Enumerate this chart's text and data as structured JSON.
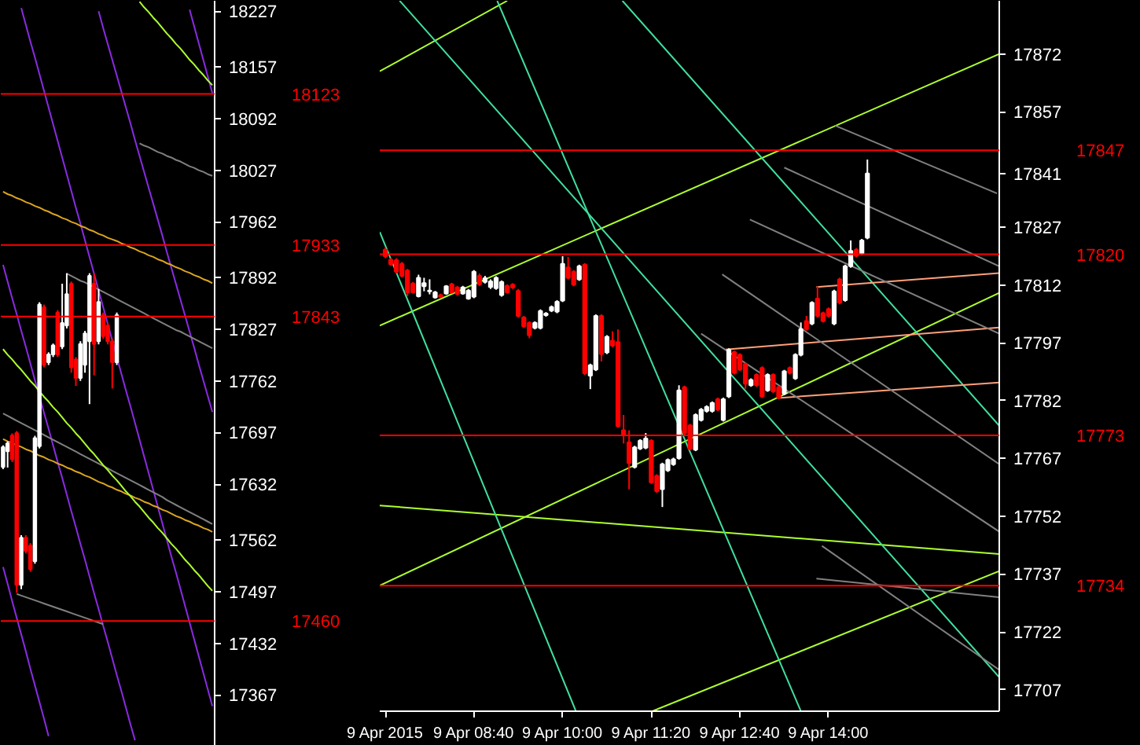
{
  "chart_data": [
    {
      "type": "candlestick",
      "tick_labels": "y",
      "grid": false,
      "categories": [
        null,
        null,
        null,
        null,
        null,
        null,
        null,
        null,
        null,
        null,
        null,
        null,
        null,
        null,
        null,
        null,
        null,
        null,
        null,
        null,
        null,
        null,
        null,
        null,
        null,
        null,
        null,
        null,
        null,
        null,
        null,
        null,
        null,
        null,
        null,
        null,
        null,
        null,
        null,
        null,
        null,
        null,
        null,
        null,
        null,
        null,
        null
      ],
      "ohlc": [
        [
          17653.7,
          17681,
          17651,
          17678.7
        ],
        [
          17673.4,
          17686,
          17653,
          17683.3
        ],
        [
          17693.2,
          17696,
          17660,
          17663.5
        ],
        [
          17696.5,
          17699,
          17495.5,
          17505.4
        ],
        [
          17505.4,
          17568,
          17500,
          17564.7
        ],
        [
          17564.7,
          17568,
          17545,
          17548.2
        ],
        [
          17554.8,
          17558,
          17522,
          17525.2
        ],
        [
          17535,
          17693,
          17532,
          17690
        ],
        [
          17680,
          17861,
          17677,
          17858
        ],
        [
          17854.7,
          17858,
          17779,
          17782.2
        ],
        [
          17785.5,
          17798,
          17782,
          17795.4
        ],
        [
          17795.4,
          17809,
          17792,
          17806.6
        ],
        [
          17848,
          17851,
          17792,
          17795.4
        ],
        [
          17805.2,
          17884.3,
          17802,
          17834.9
        ],
        [
          17831.6,
          17897.5,
          17828,
          17871.2
        ],
        [
          17884.3,
          17887,
          17772.3,
          17778.9
        ],
        [
          17788.8,
          17792,
          17755.8,
          17765.7
        ],
        [
          17765.7,
          17812,
          17762,
          17808.5
        ],
        [
          17782.2,
          17825,
          17772.3,
          17821.7
        ],
        [
          17811.8,
          17897.5,
          17732.8,
          17894.2
        ],
        [
          17884.3,
          17897.5,
          17769,
          17808.5
        ],
        [
          17811.8,
          17877.7,
          17808,
          17861.3
        ],
        [
          17844.8,
          17848,
          17815,
          17818.4
        ],
        [
          17831.6,
          17835,
          17808,
          17811.8
        ],
        [
          17811.8,
          17815,
          17752.5,
          17785.5
        ],
        [
          17785.5,
          17848,
          17782,
          17844.8
        ],
        null,
        null,
        null,
        null,
        null,
        null,
        null,
        null,
        null,
        null,
        null,
        null,
        null,
        null,
        null,
        null,
        null,
        null,
        null,
        null,
        null
      ],
      "colors": [
        "#ffffff",
        "#ffffff",
        "#ff0000",
        "#ff0000",
        "#ffffff",
        "#ff0000",
        "#ff0000",
        "#ffffff",
        "#ffffff",
        "#ff0000",
        "#ffffff",
        "#ffffff",
        "#ff0000",
        "#ffffff",
        "#ffffff",
        "#ff0000",
        "#ff0000",
        "#ffffff",
        "#ffffff",
        "#ffffff",
        "#ff0000",
        "#ffffff",
        "#ff0000",
        "#ff0000",
        "#ff0000",
        "#ffffff",
        null,
        null,
        null,
        null,
        null,
        null,
        null,
        null,
        null,
        null,
        null,
        null,
        null,
        null,
        null,
        null,
        null,
        null,
        null,
        null,
        null
      ],
      "series": [
        {
          "type": "line",
          "color": "#8a2be2",
          "values": [
            17908,
            17887,
            17866,
            17846,
            17825,
            17805,
            17784,
            17763,
            17743,
            17722,
            17702,
            17681,
            17660,
            17640,
            17619,
            17598,
            17578,
            17557,
            17537,
            17516,
            17495,
            17475,
            17454,
            17434,
            17413,
            17392,
            17372,
            17351,
            17330,
            17310,
            null,
            null,
            null,
            null,
            null,
            null,
            null,
            null,
            null,
            null,
            null,
            null,
            null,
            null,
            null,
            null,
            null
          ]
        },
        {
          "type": "line",
          "color": "#8a2be2",
          "values": [
            null,
            null,
            null,
            null,
            18231,
            18210,
            18189,
            18169,
            18148,
            18127,
            18106,
            18085,
            18064,
            18043,
            18022,
            18001,
            17980,
            17960,
            17939,
            17918,
            17897,
            17876,
            17855,
            17834,
            17813,
            17792,
            17771,
            17750,
            17730,
            17709,
            17688,
            17667,
            17646,
            17625,
            17604,
            17583,
            17562,
            17541,
            17521,
            17500,
            17479,
            17458,
            17437,
            17416,
            17395,
            17374,
            17353
          ]
        },
        {
          "type": "line",
          "color": "#8a2be2",
          "values": [
            null,
            null,
            null,
            null,
            null,
            null,
            null,
            null,
            null,
            null,
            null,
            null,
            null,
            null,
            null,
            null,
            null,
            null,
            null,
            null,
            null,
            18227,
            18206,
            18186,
            18166,
            18146,
            18126,
            18106,
            18086,
            18065,
            18045,
            18025,
            18005,
            17985,
            17965,
            17945,
            17924,
            17904,
            17884,
            17864,
            17844,
            17824,
            17804,
            17783,
            17763,
            17743,
            17723
          ]
        },
        {
          "type": "line",
          "color": "#8a2be2",
          "values": [
            null,
            null,
            null,
            null,
            null,
            null,
            null,
            null,
            null,
            null,
            null,
            null,
            null,
            null,
            null,
            null,
            null,
            null,
            null,
            null,
            null,
            null,
            null,
            null,
            null,
            null,
            null,
            null,
            null,
            null,
            null,
            null,
            null,
            null,
            null,
            null,
            null,
            null,
            null,
            null,
            null,
            18229,
            18208,
            18187,
            18166,
            18145,
            18124
          ]
        },
        {
          "type": "line",
          "color": "#8a2be2",
          "values": [
            17528,
            17507,
            17485,
            17464,
            17443,
            17422,
            17400,
            17379,
            17358,
            17337,
            17315,
            null,
            null,
            null,
            null,
            null,
            null,
            null,
            null,
            null,
            null,
            null,
            null,
            null,
            null,
            null,
            null,
            null,
            null,
            null,
            null,
            null,
            null,
            null,
            null,
            null,
            null,
            null,
            null,
            null,
            null,
            null,
            null,
            null,
            null,
            null,
            null
          ]
        },
        {
          "type": "line",
          "color": "#daa520",
          "values": [
            18000,
            17997,
            17995,
            17992,
            17990,
            17987,
            17985,
            17982,
            17980,
            17977,
            17975,
            17972,
            17970,
            17967,
            17965,
            17962,
            17960,
            17957,
            17955,
            17952,
            17950,
            17947,
            17945,
            17942,
            17940,
            17938,
            17935,
            17933,
            17930,
            17928,
            17925,
            17923,
            17920,
            17918,
            17915,
            17913,
            17910,
            17908,
            17905,
            17903,
            17900,
            17898,
            17895,
            17893,
            17890,
            17888,
            17885
          ]
        },
        {
          "type": "line",
          "color": "#daa520",
          "values": [
            17689,
            17686,
            17684,
            17681,
            17679,
            17676,
            17674,
            17671,
            17668,
            17666,
            17663,
            17661,
            17658,
            17656,
            17653,
            17651,
            17648,
            17646,
            17643,
            17641,
            17638,
            17635,
            17633,
            17630,
            17628,
            17625,
            17623,
            17620,
            17618,
            17615,
            17613,
            17610,
            17608,
            17605,
            17603,
            17600,
            17598,
            17595,
            17592,
            17590,
            17587,
            17585,
            17582,
            17580,
            17577,
            17575,
            17572
          ]
        },
        {
          "type": "line",
          "color": "#808080",
          "values": [
            null,
            null,
            null,
            null,
            null,
            null,
            null,
            null,
            null,
            null,
            null,
            null,
            null,
            null,
            17897,
            17894,
            17891,
            17888,
            17886,
            17883,
            17880,
            17877,
            17874,
            17871,
            17868,
            17865,
            17862,
            17859,
            17856,
            17853,
            17850,
            17847,
            17844,
            17841,
            17838,
            17835,
            17832,
            17829,
            17826,
            17824,
            17821,
            17818,
            17815,
            17812,
            17809,
            17806,
            17803
          ]
        },
        {
          "type": "line",
          "color": "#808080",
          "values": [
            17721,
            17718,
            17715,
            17712,
            17709,
            17706,
            17703,
            17700,
            17697,
            17694,
            17691,
            17688,
            17685,
            17682,
            17679,
            17676,
            17673,
            17670,
            17667,
            17664,
            17661,
            17658,
            17655,
            17652,
            17649,
            17646,
            17643,
            17640,
            17637,
            17634,
            17631,
            17628,
            17625,
            17622,
            17619,
            17616,
            17612,
            17609,
            17606,
            17603,
            17600,
            17597,
            17594,
            17591,
            17588,
            17585,
            17582
          ]
        },
        {
          "type": "line",
          "color": "#808080",
          "values": [
            null,
            null,
            null,
            17494,
            17492,
            17490,
            17488,
            17486,
            17484,
            17482,
            17480,
            17478,
            17476,
            17474,
            17472,
            17470,
            17468,
            17466,
            17464,
            17462,
            17460,
            17458,
            17456,
            null,
            null,
            null,
            null,
            null,
            null,
            null,
            null,
            null,
            null,
            null,
            null,
            null,
            null,
            null,
            null,
            null,
            null,
            null,
            null,
            null,
            null,
            null,
            null
          ]
        },
        {
          "type": "line",
          "color": "#808080",
          "values": [
            null,
            null,
            null,
            null,
            null,
            null,
            null,
            null,
            null,
            null,
            null,
            null,
            null,
            null,
            null,
            null,
            null,
            null,
            null,
            null,
            null,
            null,
            null,
            null,
            null,
            null,
            null,
            null,
            null,
            null,
            18061,
            18058,
            18056,
            18053,
            18050,
            18048,
            18045,
            18043,
            18040,
            18038,
            18035,
            18032,
            18030,
            18027,
            18025,
            18022,
            18020
          ]
        },
        {
          "type": "line",
          "color": "#adff2f",
          "values": [
            17802,
            17795,
            17789,
            17782,
            17776,
            17769,
            17762,
            17756,
            17749,
            17742,
            17736,
            17729,
            17723,
            17716,
            17709,
            17703,
            17696,
            17690,
            17683,
            17676,
            17670,
            17663,
            17656,
            17650,
            17643,
            17637,
            17630,
            17623,
            17617,
            17610,
            17604,
            17597,
            17590,
            17584,
            17577,
            17571,
            17564,
            17557,
            17551,
            17544,
            17537,
            17531,
            17524,
            17518,
            17511,
            17504,
            17498
          ]
        },
        {
          "type": "line",
          "color": "#adff2f",
          "values": [
            null,
            null,
            null,
            null,
            null,
            null,
            null,
            null,
            null,
            null,
            null,
            null,
            null,
            null,
            null,
            null,
            null,
            null,
            null,
            null,
            null,
            null,
            null,
            null,
            null,
            null,
            null,
            null,
            null,
            null,
            18239,
            18232,
            18226,
            18219,
            18213,
            18206,
            18199,
            18193,
            18186,
            18180,
            18173,
            18166,
            18160,
            18153,
            18147,
            18140,
            18134
          ]
        }
      ],
      "ref_lines": [
        {
          "axis": "y",
          "value": 18123,
          "label": "18123",
          "color": "#ff0000"
        },
        {
          "axis": "y",
          "value": 17933,
          "label": "17933",
          "color": "#ff0000"
        },
        {
          "axis": "y",
          "value": 17843,
          "label": "17843",
          "color": "#ff0000"
        },
        {
          "axis": "y",
          "value": 17460,
          "label": "17460",
          "color": "#ff0000"
        }
      ],
      "ylim": [
        17303,
        18240.2
      ],
      "yticks": [
        18227,
        18157,
        18092,
        18027,
        17962,
        17892,
        17827,
        17762,
        17697,
        17632,
        17562,
        17497,
        17432,
        17367
      ]
    },
    {
      "type": "candlestick",
      "grid": false,
      "x": [
        "2015-04-09T07:20",
        "2015-04-09T07:25",
        "2015-04-09T07:30",
        "2015-04-09T07:35",
        "2015-04-09T07:40",
        "2015-04-09T07:45",
        "2015-04-09T07:50",
        "2015-04-09T07:55",
        "2015-04-09T08:00",
        "2015-04-09T08:05",
        "2015-04-09T08:10",
        "2015-04-09T08:15",
        "2015-04-09T08:20",
        "2015-04-09T08:25",
        "2015-04-09T08:30",
        "2015-04-09T08:35",
        "2015-04-09T08:40",
        "2015-04-09T08:45",
        "2015-04-09T08:50",
        "2015-04-09T08:55",
        "2015-04-09T09:00",
        "2015-04-09T09:05",
        "2015-04-09T09:10",
        "2015-04-09T09:15",
        "2015-04-09T09:20",
        "2015-04-09T09:25",
        "2015-04-09T09:30",
        "2015-04-09T09:35",
        "2015-04-09T09:40",
        "2015-04-09T09:45",
        "2015-04-09T09:50",
        "2015-04-09T09:55",
        "2015-04-09T10:00",
        "2015-04-09T10:05",
        "2015-04-09T10:10",
        "2015-04-09T10:15",
        "2015-04-09T10:20",
        "2015-04-09T10:25",
        "2015-04-09T10:30",
        "2015-04-09T10:35",
        "2015-04-09T10:40",
        "2015-04-09T10:45",
        "2015-04-09T10:50",
        "2015-04-09T10:55",
        "2015-04-09T11:00",
        "2015-04-09T11:05",
        "2015-04-09T11:10",
        "2015-04-09T11:15",
        "2015-04-09T11:20",
        "2015-04-09T11:25",
        "2015-04-09T11:30",
        "2015-04-09T11:35",
        "2015-04-09T11:40",
        "2015-04-09T11:45",
        "2015-04-09T11:50",
        "2015-04-09T11:55",
        "2015-04-09T12:00",
        "2015-04-09T12:05",
        "2015-04-09T12:10",
        "2015-04-09T12:15",
        "2015-04-09T12:20",
        "2015-04-09T12:25",
        "2015-04-09T12:30",
        "2015-04-09T12:35",
        "2015-04-09T12:40",
        "2015-04-09T12:45",
        "2015-04-09T12:50",
        "2015-04-09T12:55",
        "2015-04-09T13:00",
        "2015-04-09T13:05",
        "2015-04-09T13:10",
        "2015-04-09T13:15",
        "2015-04-09T13:20",
        "2015-04-09T13:25",
        "2015-04-09T13:30",
        "2015-04-09T13:35",
        "2015-04-09T13:40",
        "2015-04-09T13:45",
        "2015-04-09T13:50",
        "2015-04-09T13:55",
        "2015-04-09T14:00",
        "2015-04-09T14:05",
        "2015-04-09T14:10",
        "2015-04-09T14:15",
        "2015-04-09T14:20",
        "2015-04-09T14:25",
        "2015-04-09T14:30",
        "2015-04-09T14:35"
      ],
      "ohlc": [
        [
          17821.2,
          17821.8,
          17819.0,
          17819.5
        ],
        [
          17818.6,
          17819.0,
          17817.0,
          17817.4
        ],
        [
          17818.5,
          17819.0,
          17815.0,
          17815.5
        ],
        [
          17817.5,
          17818.0,
          17814.0,
          17814.4
        ],
        [
          17815.8,
          17816.2,
          17809.1,
          17810.1
        ],
        [
          17812.4,
          17812.8,
          17809.8,
          17810.1
        ],
        [
          17809.1,
          17814.7,
          17808.8,
          17813.9
        ],
        [
          17811.7,
          17813.9,
          17810.4,
          17812.5
        ],
        [
          17810.4,
          17813.5,
          17809.6,
          17810.6
        ],
        [
          17808.8,
          17810.5,
          17808.5,
          17810.1
        ],
        [
          17809.4,
          17809.8,
          17808.6,
          17809.0
        ],
        [
          17809.8,
          17812.0,
          17809.5,
          17811.7
        ],
        [
          17812.2,
          17812.6,
          17809.8,
          17810.1
        ],
        [
          17811.4,
          17811.8,
          17809.3,
          17809.7
        ],
        [
          17809.8,
          17811.8,
          17809.5,
          17811.4
        ],
        [
          17808.5,
          17811.0,
          17808.2,
          17810.6
        ],
        [
          17809.0,
          17815.9,
          17808.6,
          17815.5
        ],
        [
          17814.4,
          17815.0,
          17811.8,
          17812.2
        ],
        [
          17812.8,
          17814.4,
          17812.4,
          17813.8
        ],
        [
          17811.5,
          17813.5,
          17811.0,
          17813.0
        ],
        [
          17811.2,
          17814.3,
          17810.8,
          17813.9
        ],
        [
          17809.4,
          17813.2,
          17809.0,
          17812.8
        ],
        [
          17811.8,
          17812.2,
          17809.8,
          17810.1
        ],
        [
          17812.1,
          17812.5,
          17811.0,
          17811.4
        ],
        [
          17810.5,
          17811.0,
          17803.6,
          17804.0
        ],
        [
          17803.6,
          17804.0,
          17800.9,
          17801.3
        ],
        [
          17802.2,
          17802.6,
          17798.2,
          17799.0
        ],
        [
          17800.9,
          17802.6,
          17800.5,
          17802.2
        ],
        [
          17800.9,
          17805.7,
          17800.5,
          17805.3
        ],
        [
          17804.2,
          17805.0,
          17803.8,
          17804.6
        ],
        [
          17805.4,
          17806.7,
          17805.0,
          17806.3
        ],
        [
          17805.1,
          17808.1,
          17804.7,
          17807.7
        ],
        [
          17808.0,
          17819.5,
          17807.6,
          17817.5
        ],
        [
          17816.6,
          17819.3,
          17813.5,
          17813.9
        ],
        [
          17815.5,
          17815.9,
          17811.7,
          17812.1
        ],
        [
          17813.5,
          17817.3,
          17813.1,
          17816.9
        ],
        [
          17817.3,
          17817.7,
          17788.7,
          17789.1
        ],
        [
          17788.5,
          17791.6,
          17785.0,
          17791.2
        ],
        [
          17790.1,
          17804.4,
          17789.7,
          17804.0
        ],
        [
          17804.0,
          17804.4,
          17792.2,
          17794.1
        ],
        [
          17794.5,
          17799.0,
          17794.1,
          17798.6
        ],
        [
          17797.6,
          17800.0,
          17795.9,
          17796.3
        ],
        [
          17797.2,
          17800.5,
          17775.0,
          17775.4
        ],
        [
          17774.3,
          17778.3,
          17770.9,
          17773.3
        ],
        [
          17771.2,
          17774.3,
          17759.0,
          17765.8
        ],
        [
          17764.8,
          17770.3,
          17764.4,
          17769.9
        ],
        [
          17769.6,
          17772.0,
          17769.2,
          17771.6
        ],
        [
          17769.8,
          17773.6,
          17769.4,
          17772.2
        ],
        [
          17771.6,
          17772.0,
          17760.4,
          17760.8
        ],
        [
          17762.5,
          17762.9,
          17758.1,
          17758.5
        ],
        [
          17759.0,
          17765.9,
          17754.4,
          17765.5
        ],
        [
          17763.9,
          17767.0,
          17763.5,
          17766.6
        ],
        [
          17765.5,
          17767.2,
          17765.1,
          17766.8
        ],
        [
          17767.1,
          17786.0,
          17766.7,
          17784.7
        ],
        [
          17785.5,
          17785.9,
          17773.2,
          17773.6
        ],
        [
          17775.6,
          17776.0,
          17769.1,
          17769.5
        ],
        [
          17769.3,
          17778.7,
          17768.9,
          17778.3
        ],
        [
          17777.0,
          17780.1,
          17776.6,
          17779.7
        ],
        [
          17779.3,
          17780.8,
          17778.9,
          17780.4
        ],
        [
          17779.3,
          17781.8,
          17778.9,
          17781.4
        ],
        [
          17782.4,
          17782.8,
          17779.3,
          17779.7
        ],
        [
          17777.0,
          17782.8,
          17776.6,
          17782.4
        ],
        [
          17783.1,
          17795.6,
          17782.7,
          17795.2
        ],
        [
          17794.6,
          17795.0,
          17788.8,
          17789.2
        ],
        [
          17793.9,
          17794.3,
          17789.7,
          17790.1
        ],
        [
          17791.5,
          17791.9,
          17785.1,
          17786.4
        ],
        [
          17786.0,
          17787.8,
          17785.6,
          17787.4
        ],
        [
          17788.7,
          17789.1,
          17785.6,
          17786.0
        ],
        [
          17790.5,
          17790.9,
          17782.7,
          17783.1
        ],
        [
          17784.7,
          17789.1,
          17784.3,
          17788.7
        ],
        [
          17788.7,
          17789.1,
          17784.0,
          17784.4
        ],
        [
          17785.5,
          17785.9,
          17782.4,
          17782.8
        ],
        [
          17783.8,
          17790.0,
          17783.4,
          17789.6
        ],
        [
          17790.5,
          17790.9,
          17788.8,
          17789.2
        ],
        [
          17787.8,
          17794.3,
          17787.4,
          17793.9
        ],
        [
          17793.9,
          17802.3,
          17793.5,
          17800.6
        ],
        [
          17802.7,
          17804.0,
          17800.2,
          17800.6
        ],
        [
          17802.0,
          17807.8,
          17801.6,
          17807.4
        ],
        [
          17808.5,
          17811.7,
          17803.6,
          17804.0
        ],
        [
          17804.7,
          17805.1,
          17802.3,
          17802.7
        ],
        [
          17805.8,
          17806.2,
          17803.6,
          17804.0
        ],
        [
          17802.0,
          17810.8,
          17801.6,
          17810.4
        ],
        [
          17813.5,
          17813.9,
          17807.0,
          17807.4
        ],
        [
          17808.1,
          17817.3,
          17807.7,
          17816.9
        ],
        [
          17816.9,
          17823.6,
          17816.5,
          17820.9
        ],
        [
          17821.2,
          17821.6,
          17819.2,
          17819.6
        ],
        [
          17820.2,
          17824.0,
          17819.8,
          17823.6
        ],
        [
          17824.3,
          17844.6,
          17823.9,
          17841
        ]
      ],
      "colors": [
        "#ff0000",
        "#ff0000",
        "#ff0000",
        "#ff0000",
        "#ff0000",
        "#ff0000",
        "#ffffff",
        "#ffffff",
        "#ffffff",
        "#ffffff",
        "#ff0000",
        "#ffffff",
        "#ff0000",
        "#ff0000",
        "#ffffff",
        "#ffffff",
        "#ffffff",
        "#ff0000",
        "#ffffff",
        "#ffffff",
        "#ffffff",
        "#ffffff",
        "#ff0000",
        "#ff0000",
        "#ff0000",
        "#ff0000",
        "#ff0000",
        "#ffffff",
        "#ffffff",
        "#ffffff",
        "#ffffff",
        "#ffffff",
        "#ffffff",
        "#ff0000",
        "#ff0000",
        "#ffffff",
        "#ff0000",
        "#ffffff",
        "#ffffff",
        "#ff0000",
        "#ffffff",
        "#ff0000",
        "#ff0000",
        "#ff0000",
        "#ff0000",
        "#ffffff",
        "#ffffff",
        "#ffffff",
        "#ff0000",
        "#ff0000",
        "#ffffff",
        "#ffffff",
        "#ffffff",
        "#ffffff",
        "#ff0000",
        "#ff0000",
        "#ffffff",
        "#ffffff",
        "#ffffff",
        "#ffffff",
        "#ff0000",
        "#ffffff",
        "#ffffff",
        "#ff0000",
        "#ff0000",
        "#ff0000",
        "#ffffff",
        "#ff0000",
        "#ff0000",
        "#ffffff",
        "#ff0000",
        "#ff0000",
        "#ffffff",
        "#ff0000",
        "#ffffff",
        "#ffffff",
        "#ff0000",
        "#ffffff",
        "#ff0000",
        "#ff0000",
        "#ff0000",
        "#ffffff",
        "#ff0000",
        "#ffffff",
        "#ffffff",
        "#ff0000",
        "#ffffff",
        "#ffffff"
      ],
      "series": [
        {
          "type": "line",
          "color": "#adff2f",
          "x": [
            "2015-04-09T07:15",
            "2015-04-09T16:34"
          ],
          "values": [
            17801.5,
            17872
          ]
        },
        {
          "type": "line",
          "color": "#adff2f",
          "x": [
            "2015-04-09T07:15",
            "2015-04-09T09:10"
          ],
          "values": [
            17867.5,
            17885.8
          ]
        },
        {
          "type": "line",
          "color": "#adff2f",
          "x": [
            "2015-04-09T07:15",
            "2015-04-09T16:34"
          ],
          "values": [
            17734,
            17810
          ]
        },
        {
          "type": "line",
          "color": "#adff2f",
          "x": [
            "2015-04-09T11:21",
            "2015-04-09T16:34"
          ],
          "values": [
            17701.4,
            17737.8
          ]
        },
        {
          "type": "line",
          "color": "#adff2f",
          "x": [
            "2015-04-09T07:15",
            "2015-04-09T16:34"
          ],
          "values": [
            17754.8,
            17742.2
          ]
        },
        {
          "type": "line",
          "color": "#40e0a0",
          "x": [
            "2015-04-09T07:15",
            "2015-04-09T10:12"
          ],
          "values": [
            17825.8,
            17701.4
          ]
        },
        {
          "type": "line",
          "color": "#40e0a0",
          "x": [
            "2015-04-09T09:01",
            "2015-04-09T13:35"
          ],
          "values": [
            17885.8,
            17701.4
          ]
        },
        {
          "type": "line",
          "color": "#40e0a0",
          "x": [
            "2015-04-09T10:54",
            "2015-04-09T16:34"
          ],
          "values": [
            17885.8,
            17775.5
          ]
        },
        {
          "type": "line",
          "color": "#40e0a0",
          "x": [
            "2015-04-09T07:33",
            "2015-04-09T16:34"
          ],
          "values": [
            17885.8,
            17710.2
          ]
        },
        {
          "type": "line",
          "color": "#ffa07a",
          "x": [
            "2015-04-09T13:49",
            "2015-04-09T16:34"
          ],
          "values": [
            17811.5,
            17815.1
          ]
        },
        {
          "type": "line",
          "color": "#ffa07a",
          "x": [
            "2015-04-09T12:27",
            "2015-04-09T16:34"
          ],
          "values": [
            17795.3,
            17801
          ]
        },
        {
          "type": "line",
          "color": "#ffa07a",
          "x": [
            "2015-04-09T13:14",
            "2015-04-09T16:34"
          ],
          "values": [
            17782.7,
            17786.7
          ]
        },
        {
          "type": "line",
          "color": "#808080",
          "x": [
            "2015-04-09T13:20",
            "2015-04-09T16:34"
          ],
          "values": [
            17842.5,
            17816.9
          ]
        },
        {
          "type": "line",
          "color": "#808080",
          "x": [
            "2015-04-09T14:06",
            "2015-04-09T16:32"
          ],
          "values": [
            17853.4,
            17835.8
          ]
        },
        {
          "type": "line",
          "color": "#808080",
          "x": [
            "2015-04-09T12:49",
            "2015-04-09T16:34"
          ],
          "values": [
            17829,
            17799.4
          ]
        },
        {
          "type": "line",
          "color": "#808080",
          "x": [
            "2015-04-09T12:24",
            "2015-04-09T16:34"
          ],
          "values": [
            17814.8,
            17765.5
          ]
        },
        {
          "type": "line",
          "color": "#808080",
          "x": [
            "2015-04-09T12:05",
            "2015-04-09T16:34"
          ],
          "values": [
            17799.4,
            17748
          ]
        },
        {
          "type": "line",
          "color": "#808080",
          "x": [
            "2015-04-09T13:49",
            "2015-04-09T16:34"
          ],
          "values": [
            17735.8,
            17731
          ]
        },
        {
          "type": "line",
          "color": "#808080",
          "x": [
            "2015-04-09T13:54",
            "2015-04-09T16:34"
          ],
          "values": [
            17744.3,
            17712.1
          ]
        }
      ],
      "ref_lines": [
        {
          "axis": "y",
          "value": 17847,
          "label": "17847",
          "color": "#ff0000"
        },
        {
          "axis": "y",
          "value": 17820,
          "label": "17820",
          "color": "#ff0000"
        },
        {
          "axis": "y",
          "value": 17773,
          "label": "17773",
          "color": "#ff0000"
        },
        {
          "axis": "y",
          "value": 17734,
          "label": "17734",
          "color": "#ff0000"
        }
      ],
      "xlim": [
        "2015-04-09T07:15",
        "2015-04-09T16:34"
      ],
      "ylim": [
        17701.4,
        17885.8
      ],
      "xticks": [
        {
          "value": "2015-04-09T07:20",
          "label": "9 Apr 2015"
        },
        {
          "value": "2015-04-09T08:40",
          "label": "9 Apr 08:40"
        },
        {
          "value": "2015-04-09T10:00",
          "label": "9 Apr 10:00"
        },
        {
          "value": "2015-04-09T11:20",
          "label": "9 Apr 11:20"
        },
        {
          "value": "2015-04-09T12:40",
          "label": "9 Apr 12:40"
        },
        {
          "value": "2015-04-09T14:00",
          "label": "9 Apr 14:00"
        }
      ],
      "yticks": [
        17872,
        17857,
        17841,
        17827,
        17812,
        17797,
        17782,
        17767,
        17752,
        17737,
        17722,
        17707
      ]
    }
  ]
}
